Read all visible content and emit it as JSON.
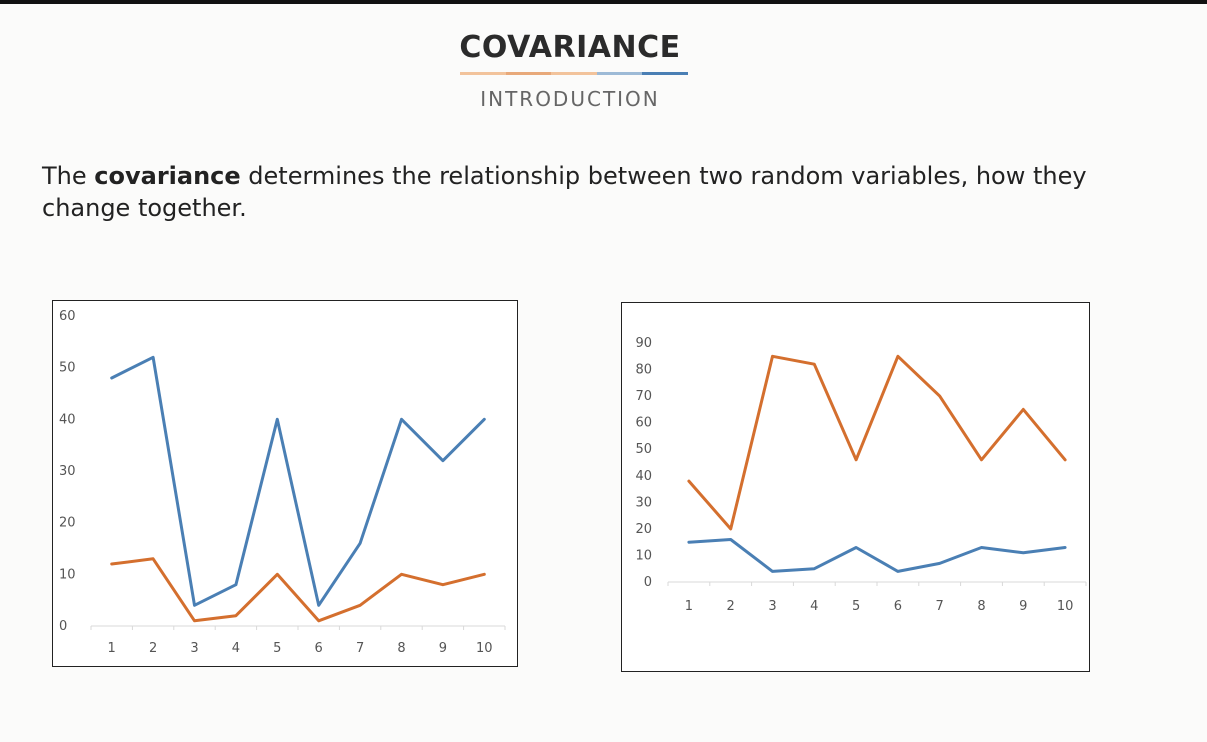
{
  "header": {
    "title": "COVARIANCE",
    "subtitle": "INTRODUCTION",
    "underline_colors": [
      "#f2c39b",
      "#e8a97a",
      "#f2c39b",
      "#9dbad6",
      "#4a7fb4"
    ]
  },
  "description": {
    "prefix": "The ",
    "bold": "covariance",
    "suffix": " determines the relationship between two random variables, how they change together."
  },
  "chart_data": [
    {
      "type": "line",
      "x": [
        1,
        2,
        3,
        4,
        5,
        6,
        7,
        8,
        9,
        10
      ],
      "series": [
        {
          "color": "#4a7fb4",
          "values": [
            48,
            52,
            4,
            8,
            40,
            4,
            16,
            40,
            32,
            40
          ]
        },
        {
          "color": "#d46f2e",
          "values": [
            12,
            13,
            1,
            2,
            10,
            1,
            4,
            10,
            8,
            10
          ]
        }
      ],
      "yticks": [
        0,
        10,
        20,
        30,
        40,
        50,
        60
      ],
      "ylim": [
        0,
        60
      ],
      "title": "",
      "xlabel": "",
      "ylabel": "",
      "grid": false
    },
    {
      "type": "line",
      "x": [
        1,
        2,
        3,
        4,
        5,
        6,
        7,
        8,
        9,
        10
      ],
      "series": [
        {
          "color": "#d46f2e",
          "values": [
            38,
            20,
            85,
            82,
            46,
            85,
            70,
            46,
            65,
            46
          ]
        },
        {
          "color": "#4a7fb4",
          "values": [
            15,
            16,
            4,
            5,
            13,
            4,
            7,
            13,
            11,
            13
          ]
        }
      ],
      "yticks": [
        0,
        10,
        20,
        30,
        40,
        50,
        60,
        70,
        80,
        90
      ],
      "ylim": [
        0,
        90
      ],
      "title": "",
      "xlabel": "",
      "ylabel": "",
      "grid": false
    }
  ]
}
